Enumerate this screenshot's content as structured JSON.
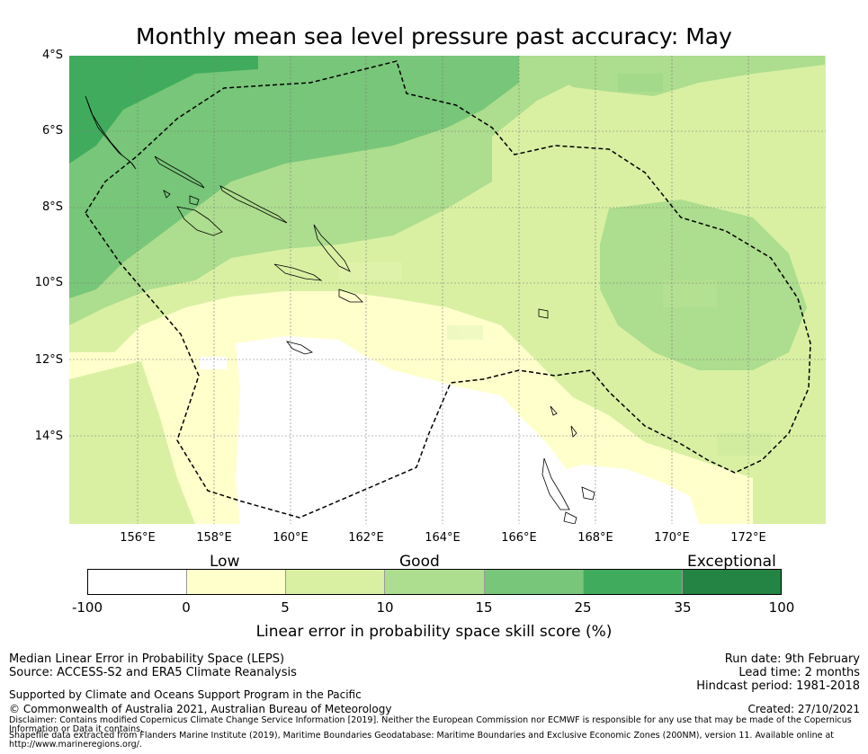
{
  "title": "Monthly mean sea level pressure past accuracy: May",
  "map": {
    "lat_ticks": [
      "4°S",
      "6°S",
      "8°S",
      "10°S",
      "12°S",
      "14°S"
    ],
    "lon_ticks": [
      "156°E",
      "158°E",
      "160°E",
      "162°E",
      "164°E",
      "166°E",
      "168°E",
      "170°E",
      "172°E"
    ],
    "lon_range": [
      154.2,
      174.0
    ],
    "lat_range": [
      -4.0,
      -16.3
    ],
    "regions": [
      "Solomon Islands",
      "Vanuatu",
      "Temotu"
    ],
    "eez_boundary": "dashed black line (Solomon Islands EEZ, 200NM)"
  },
  "legend": {
    "category_labels": [
      "Low",
      "Good",
      "Exceptional"
    ],
    "bins": [
      {
        "from": -100,
        "to": 0,
        "color": "#ffffff"
      },
      {
        "from": 0,
        "to": 5,
        "color": "#ffffcc"
      },
      {
        "from": 5,
        "to": 10,
        "color": "#d9f0a3"
      },
      {
        "from": 10,
        "to": 15,
        "color": "#addd8e"
      },
      {
        "from": 15,
        "to": 25,
        "color": "#78c679"
      },
      {
        "from": 25,
        "to": 35,
        "color": "#41ab5d"
      },
      {
        "from": 35,
        "to": 100,
        "color": "#238443"
      }
    ],
    "tick_labels": [
      "-100",
      "0",
      "5",
      "10",
      "15",
      "25",
      "35",
      "100"
    ],
    "label": "Linear error in probability space skill score (%)"
  },
  "footer": {
    "left": {
      "line1": "Median Linear Error in Probability Space (LEPS)",
      "line2": "Source: ACCESS-S2 and ERA5 Climate Reanalysis",
      "line3": "Supported by Climate and Oceans Support Program in the Pacific",
      "line4": "© Commonwealth of Australia 2021, Australian Bureau of Meteorology"
    },
    "right": {
      "run_date": "Run date: 9th February",
      "lead_time": "Lead time: 2 months",
      "hindcast": "Hindcast period: 1981-2018",
      "created": "Created: 27/10/2021"
    },
    "disclaimer1": "Disclaimer: Contains modified Copernicus Climate Change Service Information [2019]. Neither the European Commission nor ECMWF is responsible for any use that may be made of the Copernicus",
    "disclaimer2": "Information or Data it contains.",
    "disclaimer3": "Shapefile data extracted from Flanders Marine Institute (2019), Maritime Boundaries Geodatabase: Maritime Boundaries and Exclusive Economic Zones (200NM), version 11. Available online at",
    "disclaimer4": "http://www.marineregions.org/."
  }
}
